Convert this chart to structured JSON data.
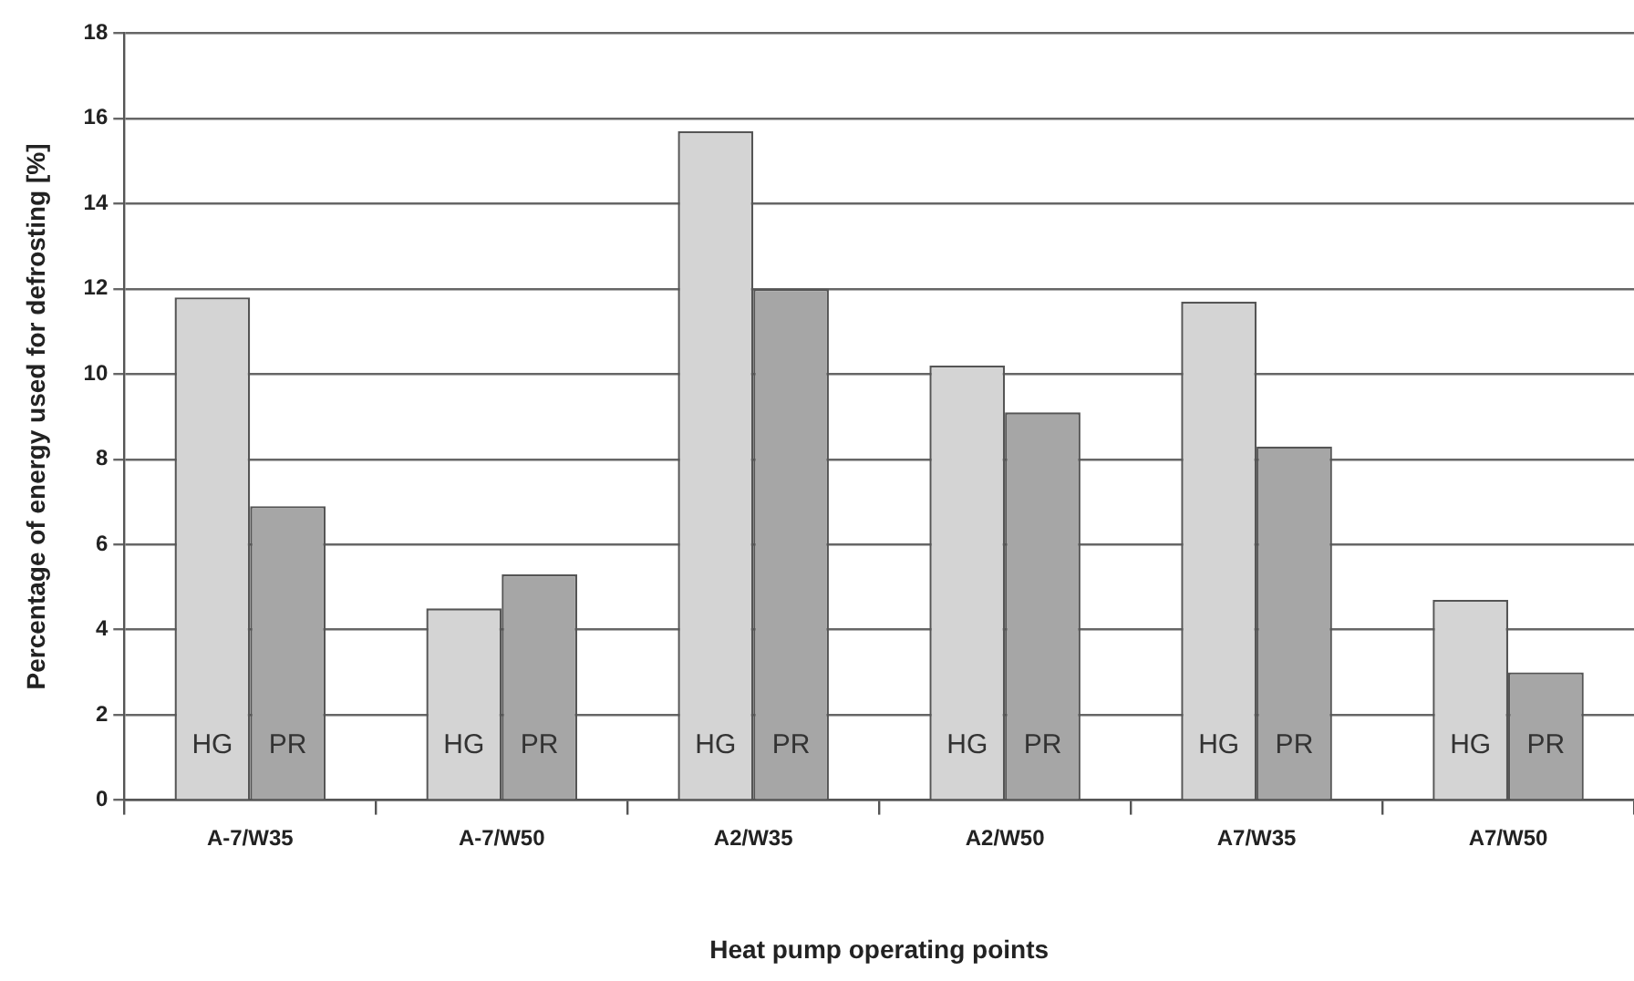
{
  "chart_data": {
    "type": "bar",
    "xlabel": "Heat pump operating points",
    "ylabel": "Percentage of energy used for defrosting [%]",
    "categories": [
      "A-7/W35",
      "A-7/W50",
      "A2/W35",
      "A2/W50",
      "A7/W35",
      "A7/W50"
    ],
    "series": [
      {
        "name": "HG",
        "color": "#d4d4d4",
        "values": [
          11.8,
          4.5,
          15.7,
          10.2,
          11.7,
          4.7
        ]
      },
      {
        "name": "PR",
        "color": "#a6a6a6",
        "values": [
          6.9,
          5.3,
          12.0,
          9.1,
          8.3,
          3.0
        ]
      }
    ],
    "ylim": [
      0,
      18
    ],
    "yticks": [
      0,
      2,
      4,
      6,
      8,
      10,
      12,
      14,
      16,
      18
    ],
    "grid": "y",
    "legend": false
  }
}
